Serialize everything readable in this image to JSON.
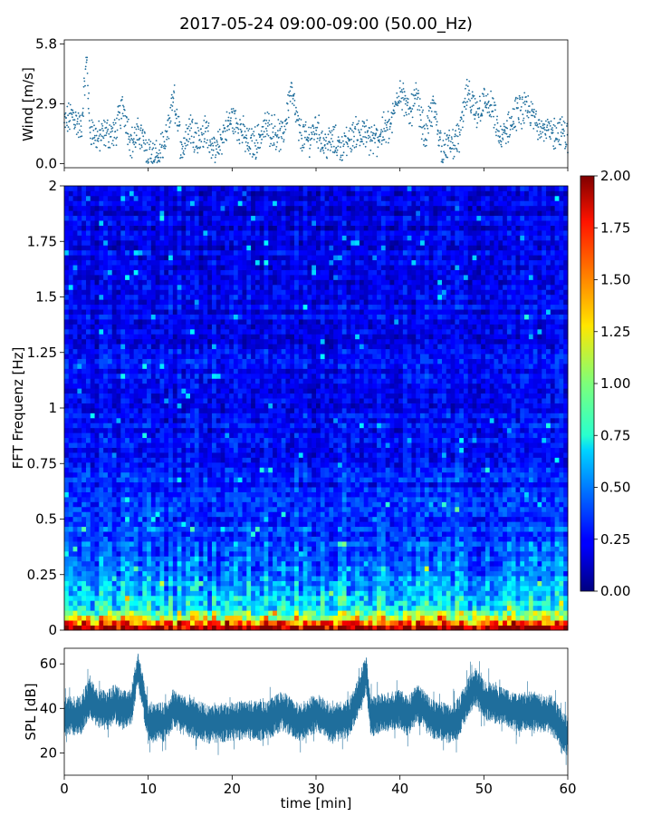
{
  "figure": {
    "title": "2017-05-24 09:00-09:00 (50.00_Hz)"
  },
  "chart_data": [
    {
      "id": "wind",
      "type": "scatter",
      "ylabel": "Wind [m/s]",
      "xlim": [
        0,
        60
      ],
      "ylim": [
        -0.2,
        6.0
      ],
      "yticks": [
        0.0,
        2.9,
        5.8
      ],
      "ytick_labels": [
        "0.0",
        "2.9",
        "5.8"
      ],
      "color": "#1f6e9c",
      "points": [
        [
          0.0,
          1.9
        ],
        [
          1.0,
          2.4
        ],
        [
          2.0,
          1.6
        ],
        [
          2.7,
          5.2
        ],
        [
          3.0,
          1.8
        ],
        [
          4.0,
          1.2
        ],
        [
          5.0,
          1.5
        ],
        [
          6.0,
          1.4
        ],
        [
          7.0,
          2.8
        ],
        [
          8.0,
          1.0
        ],
        [
          9.0,
          1.5
        ],
        [
          10.0,
          0.5
        ],
        [
          11.0,
          0.3
        ],
        [
          12.0,
          0.8
        ],
        [
          13.0,
          3.3
        ],
        [
          14.0,
          0.7
        ],
        [
          15.0,
          1.8
        ],
        [
          16.0,
          1.2
        ],
        [
          17.0,
          1.6
        ],
        [
          18.0,
          0.4
        ],
        [
          19.0,
          1.5
        ],
        [
          20.0,
          2.2
        ],
        [
          21.0,
          1.7
        ],
        [
          22.0,
          0.9
        ],
        [
          23.0,
          1.1
        ],
        [
          24.0,
          1.8
        ],
        [
          25.0,
          1.6
        ],
        [
          26.0,
          1.2
        ],
        [
          27.0,
          3.6
        ],
        [
          28.0,
          1.5
        ],
        [
          29.0,
          1.1
        ],
        [
          30.0,
          1.8
        ],
        [
          31.0,
          0.9
        ],
        [
          32.0,
          1.1
        ],
        [
          33.0,
          0.8
        ],
        [
          34.0,
          1.2
        ],
        [
          35.0,
          1.6
        ],
        [
          36.0,
          1.3
        ],
        [
          37.0,
          1.1
        ],
        [
          38.0,
          1.6
        ],
        [
          39.0,
          1.9
        ],
        [
          40.0,
          3.8
        ],
        [
          41.0,
          2.4
        ],
        [
          42.0,
          3.2
        ],
        [
          43.0,
          1.3
        ],
        [
          44.0,
          2.8
        ],
        [
          45.0,
          0.7
        ],
        [
          46.0,
          0.9
        ],
        [
          47.0,
          1.2
        ],
        [
          48.0,
          3.4
        ],
        [
          49.0,
          2.4
        ],
        [
          50.0,
          3.0
        ],
        [
          51.0,
          2.6
        ],
        [
          52.0,
          1.1
        ],
        [
          53.0,
          1.8
        ],
        [
          54.0,
          2.5
        ],
        [
          55.0,
          2.6
        ],
        [
          56.0,
          2.2
        ],
        [
          57.0,
          1.8
        ],
        [
          58.0,
          1.4
        ],
        [
          59.0,
          1.6
        ],
        [
          60.0,
          1.3
        ]
      ]
    },
    {
      "id": "spectrogram",
      "type": "heatmap",
      "ylabel": "FFT Frequenz [Hz]",
      "xlim": [
        0,
        60
      ],
      "ylim": [
        0,
        2
      ],
      "yticks": [
        0,
        0.25,
        0.5,
        0.75,
        1,
        1.25,
        1.5,
        1.75,
        2
      ],
      "ytick_labels": [
        "0",
        "0.25",
        "0.5",
        "0.75",
        "1",
        "1.25",
        "1.5",
        "1.75",
        "2"
      ],
      "colormap": "jet",
      "color_range": [
        0.0,
        2.0
      ],
      "colorbar_ticks": [
        "0.00",
        "0.25",
        "0.50",
        "0.75",
        "1.00",
        "1.25",
        "1.50",
        "1.75",
        "2.00"
      ],
      "typical_levels": [
        {
          "freq_hz": 0.01,
          "level": 2.0
        },
        {
          "freq_hz": 0.05,
          "level": 1.3
        },
        {
          "freq_hz": 0.1,
          "level": 0.8
        },
        {
          "freq_hz": 0.25,
          "level": 0.5
        },
        {
          "freq_hz": 0.5,
          "level": 0.35
        },
        {
          "freq_hz": 1.0,
          "level": 0.25
        },
        {
          "freq_hz": 2.0,
          "level": 0.2
        }
      ]
    },
    {
      "id": "spl",
      "type": "line",
      "ylabel": "SPL [dB]",
      "xlabel": "time [min]",
      "xlim": [
        0,
        60
      ],
      "ylim": [
        10,
        67
      ],
      "xticks": [
        0,
        10,
        20,
        30,
        40,
        50,
        60
      ],
      "xtick_labels": [
        "0",
        "10",
        "20",
        "30",
        "40",
        "50",
        "60"
      ],
      "yticks": [
        20,
        40,
        60
      ],
      "ytick_labels": [
        "20",
        "40",
        "60"
      ],
      "color": "#1f6e9c",
      "points": [
        [
          0,
          36
        ],
        [
          2,
          37
        ],
        [
          3,
          45
        ],
        [
          4,
          40
        ],
        [
          5,
          39
        ],
        [
          6,
          42
        ],
        [
          7,
          39
        ],
        [
          8,
          41
        ],
        [
          8.8,
          58
        ],
        [
          9.3,
          48
        ],
        [
          10,
          33
        ],
        [
          12,
          34
        ],
        [
          13,
          40
        ],
        [
          14,
          37
        ],
        [
          15,
          36
        ],
        [
          17,
          33
        ],
        [
          20,
          34
        ],
        [
          22,
          35
        ],
        [
          24,
          34
        ],
        [
          26,
          39
        ],
        [
          28,
          33
        ],
        [
          30,
          38
        ],
        [
          32,
          33
        ],
        [
          34,
          36
        ],
        [
          35,
          45
        ],
        [
          36,
          55
        ],
        [
          36.5,
          36
        ],
        [
          38,
          38
        ],
        [
          40,
          40
        ],
        [
          41,
          36
        ],
        [
          42,
          42
        ],
        [
          44,
          35
        ],
        [
          46,
          33
        ],
        [
          47,
          36
        ],
        [
          48,
          44
        ],
        [
          49,
          50
        ],
        [
          50,
          44
        ],
        [
          52,
          41
        ],
        [
          54,
          38
        ],
        [
          56,
          39
        ],
        [
          58,
          37
        ],
        [
          60,
          27
        ]
      ]
    }
  ]
}
